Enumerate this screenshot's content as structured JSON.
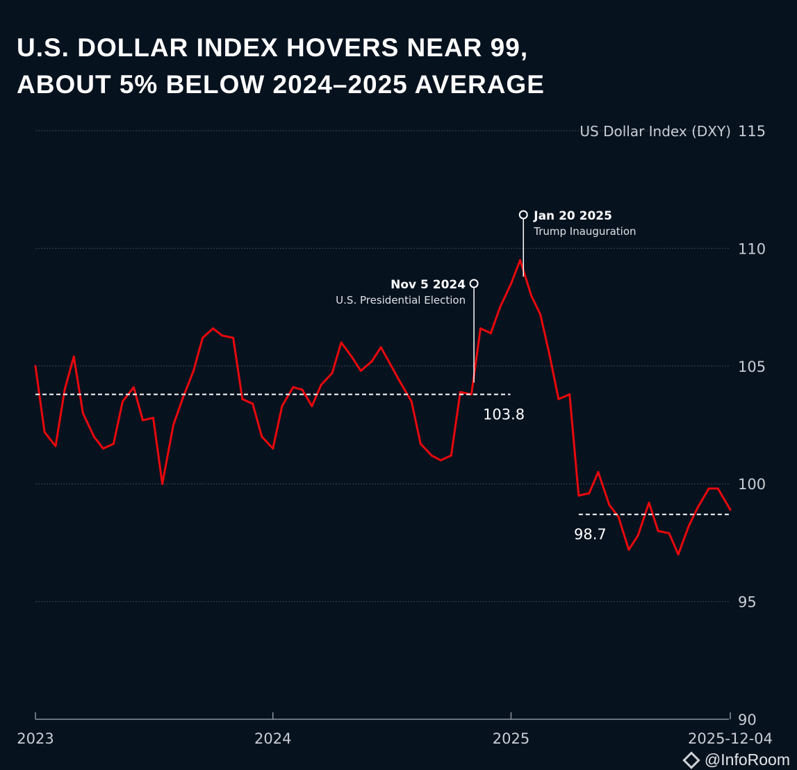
{
  "chart_data": {
    "type": "line",
    "title": "U.S. Dollar Index hovers near 99, about 5% below 2024–2025 average",
    "ylabel": "US Dollar Index (DXY)",
    "ylim": [
      90,
      115
    ],
    "yticks": [
      "90",
      "95",
      "100",
      "105",
      "110",
      "115"
    ],
    "xlim": [
      "2023-01-01",
      "2025-12-04"
    ],
    "xticks": [
      {
        "date": "2023-01-01",
        "label": "2023"
      },
      {
        "date": "2024-01-01",
        "label": "2024"
      },
      {
        "date": "2025-01-01",
        "label": "2025"
      },
      {
        "date": "2025-12-04",
        "label": "2025-12-04"
      }
    ],
    "grid": true,
    "line_color": "#e8090c",
    "series": [
      {
        "x": [
          "2023-01-01",
          "2023-01-15",
          "2023-02-01",
          "2023-02-15",
          "2023-03-01",
          "2023-03-15",
          "2023-04-01",
          "2023-04-15",
          "2023-05-01",
          "2023-05-15",
          "2023-06-01",
          "2023-06-15",
          "2023-07-01",
          "2023-07-15",
          "2023-08-01",
          "2023-08-15",
          "2023-09-01",
          "2023-09-15",
          "2023-10-01",
          "2023-10-15",
          "2023-11-01",
          "2023-11-15",
          "2023-12-01",
          "2023-12-15",
          "2024-01-01",
          "2024-01-15",
          "2024-02-01",
          "2024-02-15",
          "2024-03-01",
          "2024-03-15",
          "2024-04-01",
          "2024-04-15",
          "2024-05-01",
          "2024-05-15",
          "2024-06-01",
          "2024-06-15",
          "2024-07-01",
          "2024-07-15",
          "2024-08-01",
          "2024-08-15",
          "2024-09-01",
          "2024-09-15",
          "2024-10-01",
          "2024-10-15",
          "2024-11-01",
          "2024-11-15",
          "2024-12-01",
          "2024-12-15",
          "2025-01-01",
          "2025-01-15",
          "2025-02-01",
          "2025-02-15",
          "2025-03-01",
          "2025-03-15",
          "2025-04-01",
          "2025-04-15",
          "2025-05-01",
          "2025-05-15",
          "2025-06-01",
          "2025-06-15",
          "2025-07-01",
          "2025-07-15",
          "2025-08-01",
          "2025-08-15",
          "2025-09-01",
          "2025-09-15",
          "2025-10-01",
          "2025-10-15",
          "2025-11-01",
          "2025-11-15",
          "2025-12-04"
        ],
        "y": [
          105.0,
          102.2,
          101.6,
          104.0,
          105.4,
          103.0,
          102.0,
          101.5,
          101.7,
          103.5,
          104.1,
          102.7,
          102.8,
          100.0,
          102.5,
          103.6,
          104.8,
          106.2,
          106.6,
          106.3,
          106.2,
          103.6,
          103.4,
          102.0,
          101.5,
          103.3,
          104.1,
          104.0,
          103.3,
          104.2,
          104.7,
          106.0,
          105.4,
          104.8,
          105.2,
          105.8,
          105.0,
          104.3,
          103.5,
          101.7,
          101.2,
          101.0,
          101.2,
          103.9,
          103.8,
          106.6,
          106.4,
          107.5,
          108.5,
          109.5,
          108.0,
          107.2,
          105.5,
          103.6,
          103.8,
          99.5,
          99.6,
          100.5,
          99.1,
          98.6,
          97.2,
          97.8,
          99.2,
          98.0,
          97.9,
          97.0,
          98.2,
          99.0,
          99.8,
          99.8,
          98.9
        ]
      }
    ],
    "reference_lines": [
      {
        "label": "103.8",
        "value": 103.8,
        "from": "2023-01-01",
        "to": "2024-12-31"
      },
      {
        "label": "98.7",
        "value": 98.7,
        "from": "2025-04-15",
        "to": "2025-12-04"
      }
    ],
    "annotations": [
      {
        "date": "2024-11-05",
        "title": "Nov 5 2024",
        "text": "U.S. Presidential Election"
      },
      {
        "date": "2025-01-20",
        "title": "Jan 20 2025",
        "text": "Trump Inauguration"
      }
    ]
  },
  "watermark": "@InfoRoom"
}
